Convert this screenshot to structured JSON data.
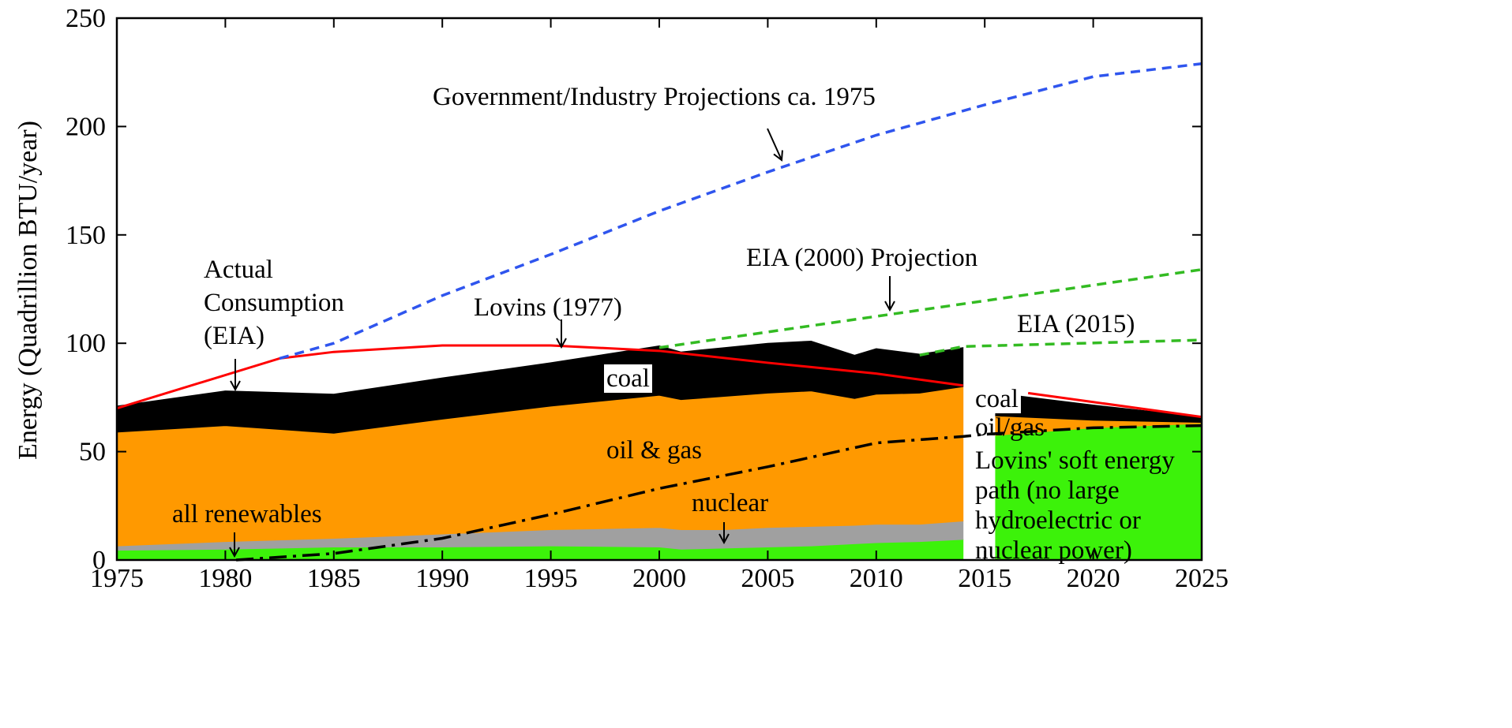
{
  "chart_data": {
    "type": "area",
    "ylabel": "Energy (Quadrillion BTU/year)",
    "xlim": [
      1975,
      2025
    ],
    "ylim": [
      0,
      250
    ],
    "xticks": [
      1975,
      1980,
      1985,
      1990,
      1995,
      2000,
      2005,
      2010,
      2015,
      2020,
      2025
    ],
    "yticks": [
      0,
      50,
      100,
      150,
      200,
      250
    ],
    "x": [
      1975,
      1980,
      1985,
      1990,
      1995,
      2000,
      2001,
      2003,
      2005,
      2007,
      2009,
      2010,
      2012,
      2014
    ],
    "series": [
      {
        "name": "all renewables",
        "color": "#3cf20a",
        "values": [
          4.5,
          5,
          6,
          6,
          6.5,
          6,
          5,
          5.5,
          6,
          6.5,
          7.5,
          8,
          8.5,
          9.5
        ]
      },
      {
        "name": "nuclear",
        "color": "#a0a0a0",
        "values": [
          2,
          3.5,
          4,
          6,
          7.5,
          9,
          9,
          8.5,
          9,
          9,
          8.5,
          8.5,
          8,
          8.5
        ]
      },
      {
        "name": "oil & gas",
        "color": "#ff9900",
        "values": [
          52.5,
          53.5,
          48.5,
          53,
          57,
          61,
          60,
          61.5,
          62,
          62.5,
          58.5,
          60,
          60.5,
          62
        ]
      },
      {
        "name": "coal",
        "color": "#000000",
        "values": [
          12,
          16,
          18,
          19,
          20,
          22.8,
          22,
          22.5,
          23,
          23,
          20,
          21,
          18,
          18
        ]
      }
    ],
    "soft_path": {
      "x": [
        2015.5,
        2020,
        2025
      ],
      "series": [
        {
          "name": [
            "Lovins' soft energy",
            "path (no large",
            "hydroelectric or",
            "nuclear power)"
          ],
          "color": "#3cf20a",
          "values": [
            57.5,
            61,
            63
          ]
        },
        {
          "name": "oil/gas",
          "color": "#ff9900",
          "values": [
            9,
            3.5,
            0.5
          ]
        },
        {
          "name": "coal",
          "color": "#000000",
          "values": [
            10.5,
            7,
            2.5
          ]
        }
      ]
    },
    "lines": [
      {
        "name": "Lovins (1977)",
        "color": "#ff0000",
        "dash": "solid",
        "x": [
          1975,
          1982.5,
          1985,
          1990,
          1995,
          2000,
          2005,
          2010,
          2014,
          2015,
          2017,
          2025
        ],
        "values": [
          70,
          93,
          96,
          99,
          99,
          96.5,
          91,
          86,
          80.5,
          null,
          77,
          66
        ]
      },
      {
        "name": "Government/Industry Projections ca. 1975",
        "color": "#2f55ee",
        "dash": "dash",
        "x": [
          1982.5,
          1985,
          1990,
          1995,
          2000,
          2005,
          2010,
          2015,
          2020,
          2025
        ],
        "values": [
          93,
          100,
          122,
          141,
          161,
          179,
          196,
          210,
          223,
          229
        ]
      },
      {
        "name": "EIA (2000) Projection",
        "color": "#33bb22",
        "dash": "dash",
        "x": [
          2000,
          2025
        ],
        "values": [
          98,
          134
        ]
      },
      {
        "name": "EIA (2015)",
        "color": "#33bb22",
        "dash": "dash",
        "x": [
          2012,
          2014,
          2025
        ],
        "values": [
          94.5,
          98.5,
          101.5
        ]
      },
      {
        "color": "#000000",
        "dash": "dashdot",
        "x": [
          1980.5,
          1985,
          1990,
          1995,
          2000,
          2005,
          2010,
          2014,
          2015,
          2020,
          2025
        ],
        "values": [
          0,
          3,
          10,
          21,
          33,
          43,
          54,
          57,
          58,
          61,
          62
        ]
      }
    ],
    "annotations": [
      [
        "Actual",
        "Consumption",
        "(EIA)"
      ]
    ]
  }
}
